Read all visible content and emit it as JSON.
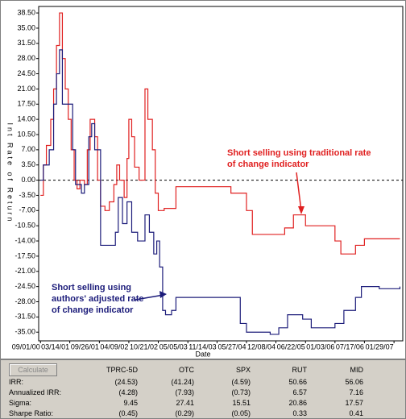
{
  "chart_data": {
    "type": "line",
    "step": true,
    "y_label": "Int Rate of Return",
    "x_label": "Date",
    "xlim": [
      "08/20/00",
      "03/28/07"
    ],
    "ylim": [
      -37,
      40
    ],
    "xticks": [
      "09/01/00",
      "03/14/01",
      "09/26/01",
      "04/09/02",
      "10/21/02",
      "05/05/03",
      "11/14/03",
      "05/27/04",
      "12/08/04",
      "06/22/05",
      "01/03/06",
      "07/17/06",
      "01/29/07"
    ],
    "yticks": [
      {
        "value": 38.5,
        "label": "38.50"
      },
      {
        "value": 35,
        "label": "35.00"
      },
      {
        "value": 31.5,
        "label": "31.50"
      },
      {
        "value": 28,
        "label": "28.00"
      },
      {
        "value": 24.5,
        "label": "24.50"
      },
      {
        "value": 21,
        "label": "21.00"
      },
      {
        "value": 17.5,
        "label": "17.50"
      },
      {
        "value": 14,
        "label": "14.00"
      },
      {
        "value": 10.5,
        "label": "10.50"
      },
      {
        "value": 7,
        "label": "7.00"
      },
      {
        "value": 3.5,
        "label": "3.50"
      },
      {
        "value": 0,
        "label": "0.00"
      },
      {
        "value": -3.5,
        "label": "-3.50"
      },
      {
        "value": -7,
        "label": "-7.00"
      },
      {
        "value": -10.5,
        "label": "-10.50"
      },
      {
        "value": -14,
        "label": "-14.00"
      },
      {
        "value": -17.5,
        "label": "-17.50"
      },
      {
        "value": -21,
        "label": "-21.00"
      },
      {
        "value": -24.5,
        "label": "-24.50"
      },
      {
        "value": -28,
        "label": "-28.00"
      },
      {
        "value": -31.5,
        "label": "-31.50"
      },
      {
        "value": -35,
        "label": "-35.00"
      }
    ],
    "zero_line": true,
    "series": [
      {
        "color": "#e02020",
        "x": [
          "09/01/00",
          "09/20/00",
          "10/10/00",
          "11/08/00",
          "11/27/00",
          "12/16/00",
          "01/05/01",
          "01/24/01",
          "02/12/01",
          "03/04/01",
          "03/23/01",
          "04/12/01",
          "05/01/01",
          "05/20/01",
          "06/19/01",
          "07/08/01",
          "07/27/01",
          "08/26/01",
          "09/14/01",
          "10/04/01",
          "11/02/01",
          "12/01/01",
          "12/31/01",
          "01/19/02",
          "02/07/02",
          "03/09/02",
          "03/28/02",
          "04/09/02",
          "04/28/02",
          "05/17/02",
          "06/16/02",
          "07/25/02",
          "08/13/02",
          "09/12/02",
          "10/01/02",
          "10/21/02",
          "11/29/02",
          "01/07/03",
          "02/15/03",
          "02/14/04",
          "05/27/04",
          "07/05/04",
          "08/12/04",
          "02/04/05",
          "04/03/05",
          "06/22/05",
          "08/19/05",
          "01/03/06",
          "02/11/06",
          "05/19/06",
          "07/17/06",
          "10/23/06",
          "03/09/07"
        ],
        "values": [
          -3.5,
          3.5,
          8,
          14,
          21,
          31,
          38.5,
          28,
          21,
          14,
          7,
          0,
          -2,
          0,
          -1,
          7,
          14,
          10,
          0,
          -6,
          -7,
          -5,
          -1,
          3.5,
          0,
          -4,
          5,
          14,
          10,
          3,
          0,
          21,
          14,
          7,
          -3,
          -7,
          -6.5,
          -6.5,
          -1.5,
          -3,
          -7,
          -12.5,
          -12.5,
          -11,
          -8,
          -10.5,
          -10.5,
          -14,
          -17,
          -15,
          -13.5,
          -13.5,
          -13.5
        ]
      },
      {
        "color": "#1c1c7a",
        "x": [
          "09/01/00",
          "09/20/00",
          "10/29/00",
          "11/27/00",
          "12/16/00",
          "01/05/01",
          "01/24/01",
          "03/14/01",
          "04/02/01",
          "04/21/01",
          "05/30/01",
          "06/19/01",
          "07/18/01",
          "08/06/01",
          "08/26/01",
          "10/04/01",
          "12/12/01",
          "01/10/02",
          "01/29/02",
          "02/26/02",
          "03/28/02",
          "04/28/02",
          "06/06/02",
          "07/25/02",
          "08/23/02",
          "09/21/02",
          "10/11/02",
          "10/30/02",
          "11/19/02",
          "12/08/02",
          "01/17/03",
          "02/15/03",
          "03/04/04",
          "04/16/04",
          "05/27/04",
          "10/31/04",
          "12/27/04",
          "02/23/05",
          "06/03/05",
          "07/30/05",
          "01/03/06",
          "03/03/06",
          "05/19/06",
          "06/27/06",
          "10/23/06",
          "03/09/07"
        ],
        "values": [
          0,
          3.5,
          7,
          17.5,
          24.5,
          30,
          17.5,
          17.5,
          7,
          -1,
          -3,
          -1,
          10,
          13,
          7,
          -15,
          -15,
          -12,
          -4,
          -10,
          -5,
          -12,
          -14,
          -8,
          -12,
          -17,
          -14,
          -20,
          -30,
          -31,
          -30,
          -27,
          -27,
          -33,
          -35,
          -35.5,
          -34,
          -31,
          -32,
          -34,
          -33,
          -30,
          -27,
          -24.5,
          -25,
          -24.5
        ]
      }
    ],
    "annotations": [
      {
        "color": "#e02020",
        "lines": [
          "Short selling using traditional rate",
          "of change indicator"
        ]
      },
      {
        "color": "#1c1c7a",
        "lines": [
          "Short selling using",
          "authors' adjusted rate",
          "of change indicator"
        ]
      }
    ]
  },
  "table": {
    "button": "Calculate",
    "header": [
      "TPRC-5D",
      "OTC",
      "SPX",
      "RUT",
      "MID"
    ],
    "rows": [
      [
        "IRR:",
        "(24.53)",
        "(41.24)",
        "(4.59)",
        "50.66",
        "56.06"
      ],
      [
        "Annualized IRR:",
        "(4.28)",
        "(7.93)",
        "(0.73)",
        "6.57",
        "7.16"
      ],
      [
        "Sigma:",
        "9.45",
        "27.41",
        "15.51",
        "20.86",
        "17.57"
      ],
      [
        "Sharpe Ratio:",
        "(0.45)",
        "(0.29)",
        "(0.05)",
        "0.33",
        "0.41"
      ]
    ]
  }
}
